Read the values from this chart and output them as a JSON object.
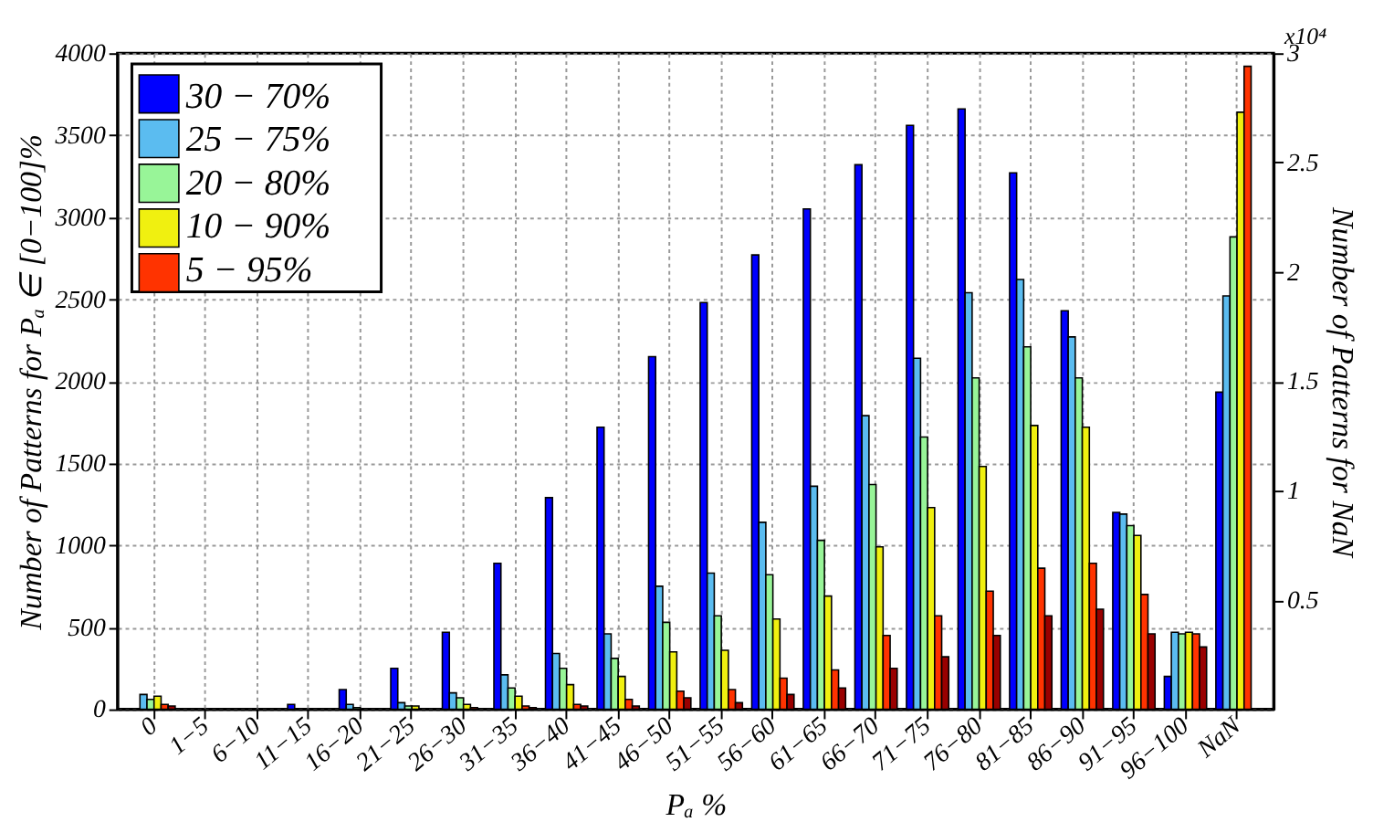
{
  "chart_data": {
    "type": "bar",
    "xlabel": "Pₐ %",
    "ylabel": "Number of Patterns for Pₐ ∈ [0−100]%",
    "y2label": "Number of Patterns for NaN",
    "annotations": [
      "x10⁴"
    ],
    "categories": [
      "0",
      "1−5",
      "6−10",
      "11−15",
      "16−20",
      "21−25",
      "26−30",
      "31−35",
      "36−40",
      "41−45",
      "46−50",
      "51−55",
      "56−60",
      "61−65",
      "66−70",
      "71−75",
      "76−80",
      "81−85",
      "86−90",
      "91−95",
      "96−100",
      "NaN"
    ],
    "series": [
      {
        "name": "30 − 70%",
        "color": "#0000ff",
        "values": [
          null,
          null,
          null,
          30,
          120,
          250,
          470,
          890,
          1290,
          1720,
          2150,
          2480,
          2770,
          3050,
          3320,
          3560,
          3660,
          3270,
          2430,
          1200,
          200,
          null
        ]
      },
      {
        "name": "25 − 75%",
        "color": "#5bbcf0",
        "values": [
          90,
          null,
          null,
          null,
          30,
          40,
          100,
          210,
          340,
          460,
          750,
          830,
          1140,
          1360,
          1790,
          2140,
          2540,
          2620,
          2270,
          1190,
          470,
          null
        ]
      },
      {
        "name": "20 − 80%",
        "color": "#98f598",
        "values": [
          60,
          null,
          null,
          null,
          10,
          20,
          70,
          130,
          250,
          310,
          530,
          570,
          820,
          1030,
          1370,
          1660,
          2020,
          2210,
          2020,
          1120,
          460,
          null
        ]
      },
      {
        "name": "10 − 90%",
        "color": "#f0f010",
        "values": [
          80,
          null,
          null,
          null,
          null,
          20,
          30,
          80,
          150,
          200,
          350,
          360,
          550,
          690,
          990,
          1230,
          1480,
          1730,
          1720,
          1060,
          470,
          null
        ]
      },
      {
        "name": "5   − 95%",
        "color": "#ff3300",
        "values": [
          30,
          null,
          null,
          null,
          null,
          null,
          10,
          20,
          30,
          60,
          110,
          120,
          190,
          240,
          450,
          570,
          720,
          860,
          890,
          700,
          460,
          null
        ]
      },
      {
        "color": "#990000",
        "values": [
          20,
          null,
          null,
          null,
          null,
          null,
          null,
          10,
          20,
          20,
          70,
          40,
          90,
          130,
          250,
          320,
          450,
          570,
          610,
          460,
          380,
          null
        ]
      },
      {
        "axis": "y2",
        "color": "#0000ff",
        "values": [
          null,
          null,
          null,
          null,
          null,
          null,
          null,
          null,
          null,
          null,
          null,
          null,
          null,
          null,
          null,
          null,
          null,
          null,
          null,
          null,
          null,
          1.45
        ]
      },
      {
        "axis": "y2",
        "color": "#5bbcf0",
        "values": [
          null,
          null,
          null,
          null,
          null,
          null,
          null,
          null,
          null,
          null,
          null,
          null,
          null,
          null,
          null,
          null,
          null,
          null,
          null,
          null,
          null,
          1.89
        ]
      },
      {
        "axis": "y2",
        "color": "#98f598",
        "values": [
          null,
          null,
          null,
          null,
          null,
          null,
          null,
          null,
          null,
          null,
          null,
          null,
          null,
          null,
          null,
          null,
          null,
          null,
          null,
          null,
          null,
          2.16
        ]
      },
      {
        "axis": "y2",
        "color": "#f0f010",
        "values": [
          null,
          null,
          null,
          null,
          null,
          null,
          null,
          null,
          null,
          null,
          null,
          null,
          null,
          null,
          null,
          null,
          null,
          null,
          null,
          null,
          null,
          2.73
        ]
      },
      {
        "axis": "y2",
        "color": "#ff3300",
        "values": [
          null,
          null,
          null,
          null,
          null,
          null,
          null,
          null,
          null,
          null,
          null,
          null,
          null,
          null,
          null,
          null,
          null,
          null,
          null,
          null,
          null,
          2.94
        ]
      }
    ],
    "ylim": [
      0,
      4000
    ],
    "yticks": [
      0,
      500,
      1000,
      1500,
      2000,
      2500,
      3000,
      3500,
      4000
    ],
    "y2lim": [
      0,
      3
    ],
    "y2ticks": [
      0.5,
      1,
      1.5,
      2,
      2.5,
      3
    ],
    "grid": true,
    "legend": "top left"
  }
}
